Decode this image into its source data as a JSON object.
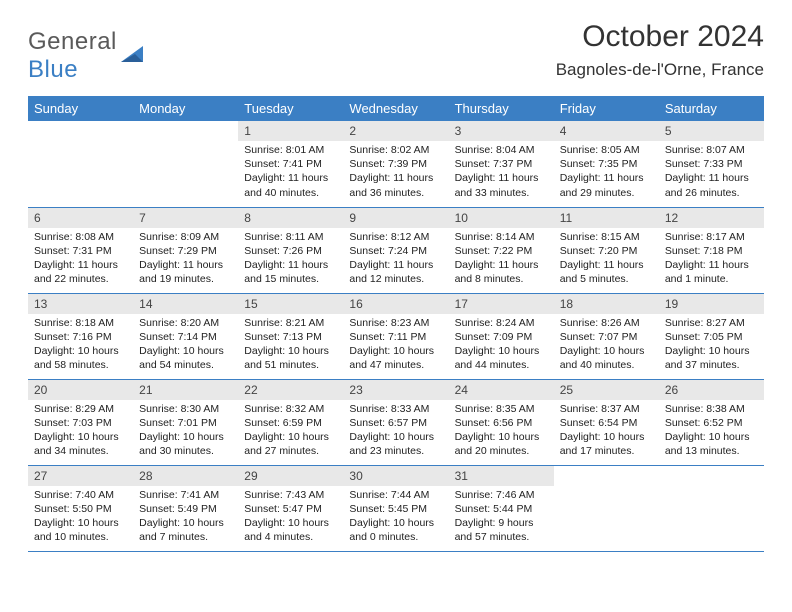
{
  "logo": {
    "text1": "General",
    "text2": "Blue"
  },
  "title": "October 2024",
  "location": "Bagnoles-de-l'Orne, France",
  "colors": {
    "header_bg": "#3b7fc4",
    "header_fg": "#ffffff",
    "daynum_bg": "#e8e8e8",
    "border": "#3b7fc4",
    "logo_gray": "#5a5a5a",
    "logo_blue": "#3b7fc4"
  },
  "weekdays": [
    "Sunday",
    "Monday",
    "Tuesday",
    "Wednesday",
    "Thursday",
    "Friday",
    "Saturday"
  ],
  "weeks": [
    [
      null,
      null,
      {
        "n": "1",
        "sr": "8:01 AM",
        "ss": "7:41 PM",
        "dl": "11 hours and 40 minutes."
      },
      {
        "n": "2",
        "sr": "8:02 AM",
        "ss": "7:39 PM",
        "dl": "11 hours and 36 minutes."
      },
      {
        "n": "3",
        "sr": "8:04 AM",
        "ss": "7:37 PM",
        "dl": "11 hours and 33 minutes."
      },
      {
        "n": "4",
        "sr": "8:05 AM",
        "ss": "7:35 PM",
        "dl": "11 hours and 29 minutes."
      },
      {
        "n": "5",
        "sr": "8:07 AM",
        "ss": "7:33 PM",
        "dl": "11 hours and 26 minutes."
      }
    ],
    [
      {
        "n": "6",
        "sr": "8:08 AM",
        "ss": "7:31 PM",
        "dl": "11 hours and 22 minutes."
      },
      {
        "n": "7",
        "sr": "8:09 AM",
        "ss": "7:29 PM",
        "dl": "11 hours and 19 minutes."
      },
      {
        "n": "8",
        "sr": "8:11 AM",
        "ss": "7:26 PM",
        "dl": "11 hours and 15 minutes."
      },
      {
        "n": "9",
        "sr": "8:12 AM",
        "ss": "7:24 PM",
        "dl": "11 hours and 12 minutes."
      },
      {
        "n": "10",
        "sr": "8:14 AM",
        "ss": "7:22 PM",
        "dl": "11 hours and 8 minutes."
      },
      {
        "n": "11",
        "sr": "8:15 AM",
        "ss": "7:20 PM",
        "dl": "11 hours and 5 minutes."
      },
      {
        "n": "12",
        "sr": "8:17 AM",
        "ss": "7:18 PM",
        "dl": "11 hours and 1 minute."
      }
    ],
    [
      {
        "n": "13",
        "sr": "8:18 AM",
        "ss": "7:16 PM",
        "dl": "10 hours and 58 minutes."
      },
      {
        "n": "14",
        "sr": "8:20 AM",
        "ss": "7:14 PM",
        "dl": "10 hours and 54 minutes."
      },
      {
        "n": "15",
        "sr": "8:21 AM",
        "ss": "7:13 PM",
        "dl": "10 hours and 51 minutes."
      },
      {
        "n": "16",
        "sr": "8:23 AM",
        "ss": "7:11 PM",
        "dl": "10 hours and 47 minutes."
      },
      {
        "n": "17",
        "sr": "8:24 AM",
        "ss": "7:09 PM",
        "dl": "10 hours and 44 minutes."
      },
      {
        "n": "18",
        "sr": "8:26 AM",
        "ss": "7:07 PM",
        "dl": "10 hours and 40 minutes."
      },
      {
        "n": "19",
        "sr": "8:27 AM",
        "ss": "7:05 PM",
        "dl": "10 hours and 37 minutes."
      }
    ],
    [
      {
        "n": "20",
        "sr": "8:29 AM",
        "ss": "7:03 PM",
        "dl": "10 hours and 34 minutes."
      },
      {
        "n": "21",
        "sr": "8:30 AM",
        "ss": "7:01 PM",
        "dl": "10 hours and 30 minutes."
      },
      {
        "n": "22",
        "sr": "8:32 AM",
        "ss": "6:59 PM",
        "dl": "10 hours and 27 minutes."
      },
      {
        "n": "23",
        "sr": "8:33 AM",
        "ss": "6:57 PM",
        "dl": "10 hours and 23 minutes."
      },
      {
        "n": "24",
        "sr": "8:35 AM",
        "ss": "6:56 PM",
        "dl": "10 hours and 20 minutes."
      },
      {
        "n": "25",
        "sr": "8:37 AM",
        "ss": "6:54 PM",
        "dl": "10 hours and 17 minutes."
      },
      {
        "n": "26",
        "sr": "8:38 AM",
        "ss": "6:52 PM",
        "dl": "10 hours and 13 minutes."
      }
    ],
    [
      {
        "n": "27",
        "sr": "7:40 AM",
        "ss": "5:50 PM",
        "dl": "10 hours and 10 minutes."
      },
      {
        "n": "28",
        "sr": "7:41 AM",
        "ss": "5:49 PM",
        "dl": "10 hours and 7 minutes."
      },
      {
        "n": "29",
        "sr": "7:43 AM",
        "ss": "5:47 PM",
        "dl": "10 hours and 4 minutes."
      },
      {
        "n": "30",
        "sr": "7:44 AM",
        "ss": "5:45 PM",
        "dl": "10 hours and 0 minutes."
      },
      {
        "n": "31",
        "sr": "7:46 AM",
        "ss": "5:44 PM",
        "dl": "9 hours and 57 minutes."
      },
      null,
      null
    ]
  ],
  "labels": {
    "sunrise": "Sunrise:",
    "sunset": "Sunset:",
    "daylight": "Daylight:"
  }
}
